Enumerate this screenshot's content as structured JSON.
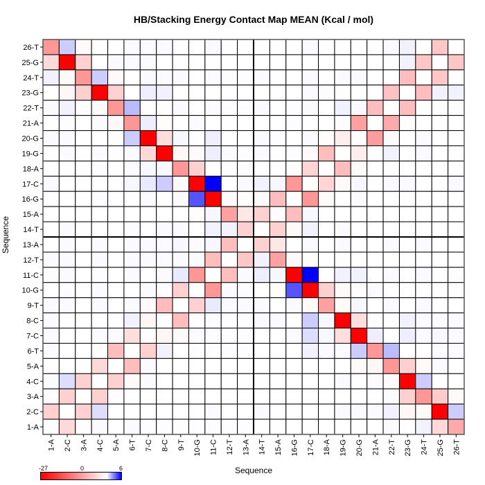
{
  "chart_data": {
    "type": "heatmap",
    "title": "HB/Stacking Energy Contact Map MEAN (Kcal / mol)",
    "xlabel": "Sequence",
    "ylabel": "Sequence",
    "labels": [
      "1-A",
      "2-C",
      "3-A",
      "4-C",
      "5-A",
      "6-T",
      "7-C",
      "8-C",
      "9-T",
      "10-G",
      "11-C",
      "12-T",
      "13-A",
      "14-T",
      "15-A",
      "16-G",
      "17-C",
      "18-A",
      "19-G",
      "20-G",
      "21-A",
      "22-T",
      "23-G",
      "24-T",
      "25-G",
      "26-T"
    ],
    "colorbar": {
      "min": -27,
      "mid": 0,
      "max": 6,
      "min_label": "-27",
      "mid_label": "0",
      "max_label": "6",
      "min_color": "#ff0000",
      "mid_color": "#ffffff",
      "max_color": "#0000ff"
    },
    "rows_order": "top row is 26-T, bottom row is 1-A; columns 1-A to 26-T",
    "values": [
      [
        -11,
        1.2,
        -0.5,
        0,
        0,
        0.1,
        0.1,
        0.1,
        0,
        0,
        0.1,
        0,
        0,
        0,
        0,
        0,
        0.1,
        0,
        0,
        0,
        0,
        0.1,
        0.3,
        0,
        -6,
        0
      ],
      [
        -4,
        -27,
        -5,
        0,
        0.1,
        0.1,
        0.1,
        0,
        0,
        0,
        0,
        0,
        0,
        0,
        0,
        0,
        0,
        0,
        0,
        0,
        0,
        -0.2,
        0.3,
        -6,
        0,
        -6
      ],
      [
        0.3,
        -0.5,
        -11,
        1.2,
        -0.5,
        0,
        0.1,
        0.1,
        0.1,
        0,
        0.1,
        0.05,
        0.05,
        0.1,
        0,
        0,
        0.1,
        0,
        0.1,
        0.1,
        0,
        0,
        -7,
        0,
        -6,
        0
      ],
      [
        0,
        -1,
        -5,
        -27,
        -5,
        0,
        0.4,
        0.3,
        0,
        0,
        0,
        0,
        0,
        0,
        0,
        0,
        0.1,
        0.05,
        -0.1,
        0,
        0,
        -6.5,
        0,
        -7,
        0.3,
        0.3
      ],
      [
        0.1,
        0.3,
        0,
        -0.5,
        -11,
        1.6,
        0,
        -0.1,
        0.1,
        0,
        0.1,
        0.05,
        0.05,
        0.1,
        0,
        0.05,
        0.1,
        0,
        0.3,
        0.1,
        -7,
        0,
        -7,
        0,
        -0.1,
        0.05
      ],
      [
        0,
        0.05,
        0,
        0.1,
        -0.7,
        -11,
        0.4,
        -0.3,
        0,
        0.1,
        0,
        0,
        0,
        0,
        0,
        0.05,
        0,
        0,
        -0.2,
        -10,
        0,
        -9,
        -0.2,
        0,
        0,
        0
      ],
      [
        0.1,
        0.1,
        0,
        0,
        -0.3,
        1.2,
        -27,
        -3.5,
        0.2,
        -0.1,
        0.4,
        0,
        0,
        0.1,
        0.05,
        0,
        0.1,
        -0.3,
        -2,
        0,
        -10.5,
        0.1,
        0,
        0.1,
        0,
        0
      ],
      [
        0,
        0.1,
        0,
        0.1,
        0,
        0.1,
        -4,
        -27,
        -1,
        -0.5,
        0.4,
        0.1,
        0.05,
        0.1,
        0,
        0.05,
        -0.5,
        -7,
        0,
        -2,
        -0.1,
        0.3,
        0,
        0.1,
        0,
        0
      ],
      [
        0,
        0,
        0,
        0.05,
        0,
        0.1,
        0.2,
        0.2,
        -11,
        -5,
        0,
        0,
        0.05,
        0,
        0,
        -0.3,
        -4.5,
        0,
        -7,
        -0.5,
        0,
        0,
        0,
        0,
        0,
        0
      ],
      [
        0.1,
        0,
        0,
        0,
        0,
        0.2,
        0.5,
        1.2,
        -0.5,
        -27,
        6,
        0,
        0.1,
        0.3,
        0.2,
        -11,
        0,
        -4.5,
        -0.5,
        0.2,
        0,
        0.1,
        0.1,
        0,
        0,
        0.1
      ],
      [
        0,
        0,
        0,
        0.05,
        0,
        0,
        0.1,
        0,
        0.1,
        4,
        -27,
        -0.5,
        -0.3,
        -0.5,
        -7,
        0,
        -11,
        -0.5,
        0,
        0.1,
        0,
        0,
        0,
        0,
        0,
        0
      ],
      [
        0,
        0,
        0,
        0,
        0,
        0,
        0,
        0,
        0,
        -0.3,
        0.2,
        -10,
        -2.5,
        -5,
        0,
        -7,
        0.2,
        0,
        0,
        0,
        0,
        0,
        0,
        0,
        0,
        0
      ],
      [
        0,
        0.1,
        0,
        0,
        0,
        0.05,
        0,
        0.1,
        0.1,
        0,
        0.3,
        0.3,
        -5,
        0,
        -5,
        -0.5,
        0.3,
        0,
        0.1,
        0,
        0,
        0,
        0,
        0,
        0,
        0
      ],
      [
        0,
        0.1,
        0,
        0.1,
        0,
        0.1,
        0.1,
        0.1,
        0.2,
        0.1,
        0.2,
        -7,
        0,
        -5,
        -2.5,
        0,
        0.1,
        0,
        0.1,
        0,
        0,
        0.1,
        0,
        0.1,
        0,
        0
      ],
      [
        0.1,
        0.1,
        0,
        0.1,
        0,
        0.1,
        0.1,
        0.1,
        0.1,
        0.1,
        -7,
        0,
        -6,
        0.3,
        -10,
        -0.5,
        0,
        0,
        0,
        0,
        0,
        0,
        0,
        0,
        0,
        0
      ],
      [
        0.05,
        0.1,
        0,
        0.05,
        0,
        0.1,
        0,
        0.1,
        0.5,
        -11,
        0,
        -7,
        0.1,
        0.4,
        0.2,
        -27,
        6,
        0,
        0.3,
        0.3,
        0,
        0.1,
        0,
        0.1,
        0,
        0.05
      ],
      [
        0,
        0.05,
        0,
        0.1,
        0,
        0,
        0.1,
        -0.2,
        -5,
        0,
        -11,
        0.1,
        0.05,
        0,
        -0.3,
        4,
        -27,
        -5,
        -0.5,
        -0.2,
        0.1,
        0,
        0,
        0,
        0,
        0
      ],
      [
        0.1,
        0.1,
        0,
        0.1,
        0,
        0.1,
        -0.5,
        -7,
        0,
        -5,
        0.5,
        0.1,
        0.1,
        0.1,
        0,
        0.1,
        -0.5,
        -10,
        -0.5,
        0.2,
        0,
        0.1,
        0,
        0.1,
        0,
        0
      ],
      [
        0.1,
        0,
        0,
        0,
        0,
        0.3,
        -1,
        0,
        -7,
        -0.2,
        0.05,
        0.05,
        0.05,
        0.1,
        0.1,
        0,
        1.2,
        0.2,
        -27,
        -3.5,
        -0.3,
        0,
        0.3,
        0.1,
        0.1,
        0.1
      ],
      [
        0.1,
        0,
        0,
        0.1,
        0.1,
        -3.5,
        0,
        -1,
        -0.5,
        0.1,
        0.05,
        0.05,
        0.05,
        0,
        0,
        0.1,
        0.8,
        0.2,
        -3.5,
        -27,
        0.4,
        0,
        0.4,
        0.1,
        0.2,
        0.1
      ],
      [
        0.1,
        0,
        0,
        -0.3,
        -7,
        0,
        -5,
        0.3,
        0,
        0.05,
        0.05,
        0.05,
        0.05,
        0,
        0,
        0,
        0.3,
        0.1,
        0.1,
        1.2,
        -11,
        1.6,
        0,
        0,
        0.1,
        0.1
      ],
      [
        0,
        0,
        -0.1,
        -4,
        0,
        -7,
        0.1,
        0,
        0,
        0,
        0,
        0,
        0,
        0,
        0,
        0,
        0,
        0,
        0,
        -0.5,
        -0.8,
        -11,
        -5,
        -0.5,
        0.1,
        0
      ],
      [
        0.1,
        0.8,
        -5,
        0,
        -5,
        -0.5,
        0.1,
        0,
        0,
        0,
        0,
        0,
        0,
        0,
        0,
        0,
        0,
        0,
        0.1,
        0,
        0.1,
        -0.5,
        -27,
        1.2,
        0,
        0
      ],
      [
        -0.2,
        -5,
        0,
        -5,
        -0.2,
        0,
        0,
        0,
        0,
        0,
        0,
        0,
        0,
        0,
        0,
        0,
        0,
        0,
        0,
        0,
        0,
        0.1,
        -5,
        -11,
        -5.5,
        -0.5
      ],
      [
        -5,
        0,
        -5,
        0.8,
        0,
        0,
        0,
        0,
        0,
        0,
        0.1,
        0,
        0,
        0.1,
        0,
        0,
        0,
        0,
        0.1,
        0.1,
        0.1,
        0.3,
        -1,
        -0.5,
        -27,
        1.2
      ],
      [
        0,
        -4,
        -0.2,
        0.1,
        0,
        0.1,
        0.05,
        0.05,
        0.05,
        0.05,
        0.05,
        0.05,
        0.05,
        0,
        0,
        0,
        0,
        0,
        0,
        0,
        0,
        0.1,
        0,
        0.3,
        -4,
        -9
      ]
    ]
  }
}
